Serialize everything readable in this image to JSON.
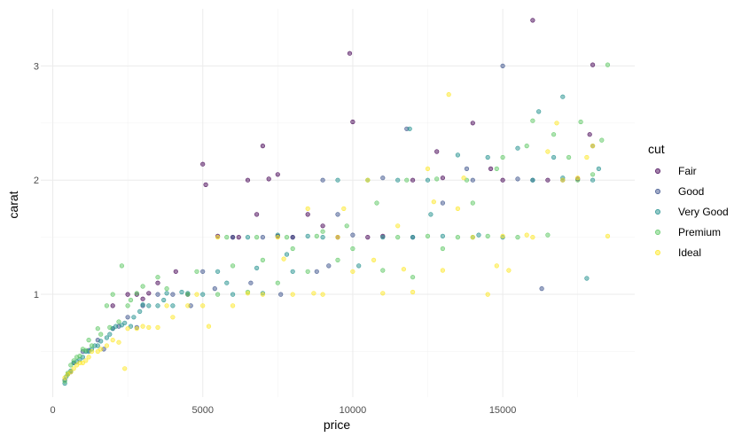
{
  "chart_data": {
    "type": "scatter",
    "title": "",
    "xlabel": "price",
    "ylabel": "carat",
    "xlim": [
      -400,
      19400
    ],
    "ylim": [
      0.1,
      3.5
    ],
    "x_ticks": [
      0,
      5000,
      10000,
      15000
    ],
    "x_tick_labels": [
      "0",
      "5000",
      "10000",
      "15000"
    ],
    "y_ticks": [
      1,
      2,
      3
    ],
    "y_tick_labels": [
      "1",
      "2",
      "3"
    ],
    "grid": true,
    "legend": {
      "title": "cut",
      "position": "right"
    },
    "point_alpha": 0.5,
    "series": [
      {
        "name": "Fair",
        "color": "#440154",
        "points": [
          [
            9900,
            3.11
          ],
          [
            16000,
            3.4
          ],
          [
            18000,
            3.01
          ],
          [
            10000,
            2.51
          ],
          [
            7000,
            2.3
          ],
          [
            5000,
            2.14
          ],
          [
            5100,
            1.96
          ],
          [
            6500,
            2.0
          ],
          [
            7200,
            2.01
          ],
          [
            6800,
            1.7
          ],
          [
            2800,
            1.0
          ],
          [
            3200,
            1.01
          ],
          [
            6000,
            1.5
          ],
          [
            7500,
            1.51
          ],
          [
            8000,
            1.5
          ],
          [
            12000,
            2.0
          ],
          [
            14000,
            2.5
          ],
          [
            15000,
            2.0
          ],
          [
            4100,
            1.2
          ],
          [
            3500,
            1.1
          ],
          [
            2000,
            0.9
          ],
          [
            2500,
            1.0
          ],
          [
            17500,
            2.01
          ],
          [
            13000,
            2.02
          ],
          [
            8500,
            1.7
          ],
          [
            9500,
            1.5
          ],
          [
            11000,
            1.51
          ],
          [
            16500,
            2.0
          ],
          [
            17900,
            2.4
          ],
          [
            7500,
            2.05
          ],
          [
            9000,
            1.6
          ],
          [
            5500,
            1.51
          ],
          [
            3000,
            0.96
          ],
          [
            4500,
            1.0
          ],
          [
            6200,
            1.5
          ],
          [
            12800,
            2.25
          ],
          [
            10500,
            1.5
          ],
          [
            14600,
            2.1
          ]
        ]
      },
      {
        "name": "Good",
        "color": "#3b528b",
        "points": [
          [
            15000,
            3.0
          ],
          [
            16300,
            1.05
          ],
          [
            14000,
            2.0
          ],
          [
            11000,
            2.02
          ],
          [
            9000,
            2.0
          ],
          [
            8000,
            1.5
          ],
          [
            7000,
            1.5
          ],
          [
            6000,
            1.5
          ],
          [
            5000,
            1.2
          ],
          [
            4000,
            1.0
          ],
          [
            3500,
            1.0
          ],
          [
            3000,
            0.9
          ],
          [
            2500,
            0.8
          ],
          [
            2000,
            0.7
          ],
          [
            1500,
            0.6
          ],
          [
            1000,
            0.5
          ],
          [
            700,
            0.4
          ],
          [
            500,
            0.3
          ],
          [
            400,
            0.25
          ],
          [
            600,
            0.32
          ],
          [
            12000,
            1.5
          ],
          [
            13000,
            1.8
          ],
          [
            17000,
            2.0
          ],
          [
            18000,
            2.3
          ],
          [
            16000,
            2.0
          ],
          [
            10000,
            1.52
          ],
          [
            9500,
            1.7
          ],
          [
            8800,
            1.2
          ],
          [
            7600,
            1.0
          ],
          [
            6600,
            1.1
          ],
          [
            5400,
            1.05
          ],
          [
            4600,
            0.9
          ],
          [
            2800,
            0.71
          ],
          [
            2200,
            0.72
          ],
          [
            1700,
            0.52
          ],
          [
            1200,
            0.51
          ],
          [
            15500,
            2.01
          ],
          [
            13800,
            2.1
          ],
          [
            11800,
            2.45
          ],
          [
            9200,
            1.25
          ]
        ]
      },
      {
        "name": "Very Good",
        "color": "#21908d",
        "points": [
          [
            11900,
            2.45
          ],
          [
            17800,
            1.14
          ],
          [
            17000,
            2.73
          ],
          [
            16200,
            2.6
          ],
          [
            15500,
            2.28
          ],
          [
            14500,
            2.2
          ],
          [
            13500,
            2.22
          ],
          [
            12500,
            2.0
          ],
          [
            11500,
            2.0
          ],
          [
            10500,
            2.0
          ],
          [
            9500,
            2.0
          ],
          [
            8500,
            1.51
          ],
          [
            7500,
            1.52
          ],
          [
            6500,
            1.5
          ],
          [
            5500,
            1.2
          ],
          [
            4500,
            1.01
          ],
          [
            4000,
            0.9
          ],
          [
            3500,
            0.9
          ],
          [
            3000,
            0.91
          ],
          [
            2700,
            0.8
          ],
          [
            2400,
            0.75
          ],
          [
            2100,
            0.72
          ],
          [
            1800,
            0.62
          ],
          [
            1500,
            0.55
          ],
          [
            1200,
            0.5
          ],
          [
            1000,
            0.45
          ],
          [
            800,
            0.41
          ],
          [
            600,
            0.33
          ],
          [
            500,
            0.3
          ],
          [
            400,
            0.22
          ],
          [
            450,
            0.28
          ],
          [
            11000,
            1.5
          ],
          [
            12000,
            1.5
          ],
          [
            13000,
            1.51
          ],
          [
            14000,
            1.5
          ],
          [
            15000,
            1.5
          ],
          [
            16000,
            2.0
          ],
          [
            17000,
            2.02
          ],
          [
            18000,
            2.0
          ],
          [
            9000,
            1.5
          ],
          [
            8000,
            1.2
          ],
          [
            7000,
            1.01
          ],
          [
            6000,
            1.0
          ],
          [
            5000,
            1.0
          ],
          [
            3800,
            1.01
          ],
          [
            3200,
            0.9
          ],
          [
            2600,
            0.72
          ],
          [
            2000,
            0.7
          ],
          [
            1600,
            0.59
          ],
          [
            1300,
            0.52
          ],
          [
            900,
            0.43
          ],
          [
            700,
            0.4
          ],
          [
            10200,
            1.25
          ],
          [
            12600,
            1.7
          ],
          [
            14200,
            1.52
          ],
          [
            16700,
            2.2
          ],
          [
            18200,
            2.1
          ],
          [
            7800,
            1.35
          ],
          [
            6800,
            1.23
          ],
          [
            5800,
            1.1
          ],
          [
            4300,
            1.02
          ],
          [
            3700,
            0.95
          ],
          [
            2900,
            0.85
          ],
          [
            2300,
            0.73
          ],
          [
            1900,
            0.65
          ],
          [
            1400,
            0.55
          ],
          [
            1100,
            0.5
          ]
        ]
      },
      {
        "name": "Premium",
        "color": "#5dc863",
        "points": [
          [
            18500,
            3.01
          ],
          [
            17600,
            2.51
          ],
          [
            16700,
            2.4
          ],
          [
            15800,
            2.3
          ],
          [
            14800,
            2.1
          ],
          [
            13800,
            2.0
          ],
          [
            12800,
            2.01
          ],
          [
            11800,
            2.0
          ],
          [
            10800,
            1.8
          ],
          [
            9800,
            1.6
          ],
          [
            8800,
            1.51
          ],
          [
            7800,
            1.5
          ],
          [
            6800,
            1.5
          ],
          [
            5800,
            1.5
          ],
          [
            4800,
            1.2
          ],
          [
            3800,
            1.05
          ],
          [
            2800,
            1.01
          ],
          [
            2600,
            0.95
          ],
          [
            2300,
            1.25
          ],
          [
            2000,
            1.0
          ],
          [
            1800,
            0.9
          ],
          [
            1500,
            0.7
          ],
          [
            1200,
            0.6
          ],
          [
            1000,
            0.52
          ],
          [
            800,
            0.45
          ],
          [
            600,
            0.38
          ],
          [
            500,
            0.31
          ],
          [
            400,
            0.24
          ],
          [
            11500,
            1.5
          ],
          [
            12500,
            1.51
          ],
          [
            13500,
            1.5
          ],
          [
            14500,
            1.51
          ],
          [
            15500,
            1.5
          ],
          [
            16500,
            1.52
          ],
          [
            17500,
            2.0
          ],
          [
            18300,
            2.35
          ],
          [
            9500,
            1.3
          ],
          [
            8500,
            1.2
          ],
          [
            7500,
            1.1
          ],
          [
            6500,
            1.02
          ],
          [
            5500,
            1.0
          ],
          [
            4500,
            1.0
          ],
          [
            3500,
            1.15
          ],
          [
            3000,
            1.07
          ],
          [
            2500,
            0.9
          ],
          [
            2200,
            0.76
          ],
          [
            1900,
            0.71
          ],
          [
            1600,
            0.65
          ],
          [
            1300,
            0.55
          ],
          [
            1100,
            0.51
          ],
          [
            900,
            0.46
          ],
          [
            700,
            0.42
          ],
          [
            10000,
            1.4
          ],
          [
            11000,
            1.21
          ],
          [
            12000,
            1.15
          ],
          [
            13000,
            1.4
          ],
          [
            14000,
            1.8
          ],
          [
            15000,
            2.2
          ],
          [
            16000,
            2.52
          ],
          [
            17200,
            2.2
          ],
          [
            18000,
            2.05
          ],
          [
            6000,
            1.25
          ],
          [
            7000,
            1.3
          ],
          [
            8000,
            1.4
          ],
          [
            9000,
            1.55
          ]
        ]
      },
      {
        "name": "Ideal",
        "color": "#fde725",
        "points": [
          [
            13200,
            2.75
          ],
          [
            14500,
            1.0
          ],
          [
            15200,
            1.21
          ],
          [
            15800,
            1.52
          ],
          [
            16800,
            2.5
          ],
          [
            17500,
            2.02
          ],
          [
            18500,
            1.51
          ],
          [
            13500,
            1.75
          ],
          [
            12500,
            2.1
          ],
          [
            11500,
            1.6
          ],
          [
            10500,
            2.0
          ],
          [
            9500,
            1.5
          ],
          [
            8500,
            1.75
          ],
          [
            7500,
            1.5
          ],
          [
            6500,
            1.01
          ],
          [
            5500,
            1.5
          ],
          [
            4500,
            0.9
          ],
          [
            3500,
            0.71
          ],
          [
            3000,
            0.72
          ],
          [
            2500,
            0.7
          ],
          [
            2000,
            0.6
          ],
          [
            1800,
            0.55
          ],
          [
            1500,
            0.5
          ],
          [
            1200,
            0.45
          ],
          [
            1000,
            0.4
          ],
          [
            800,
            0.38
          ],
          [
            600,
            0.32
          ],
          [
            500,
            0.3
          ],
          [
            400,
            0.27
          ],
          [
            11000,
            1.01
          ],
          [
            12000,
            1.02
          ],
          [
            13000,
            1.21
          ],
          [
            14000,
            1.5
          ],
          [
            15000,
            1.51
          ],
          [
            16000,
            1.5
          ],
          [
            17000,
            2.0
          ],
          [
            18000,
            2.3
          ],
          [
            10000,
            1.2
          ],
          [
            9000,
            1.0
          ],
          [
            8000,
            1.0
          ],
          [
            7000,
            1.0
          ],
          [
            6000,
            0.9
          ],
          [
            5000,
            0.9
          ],
          [
            4000,
            0.8
          ],
          [
            3200,
            0.71
          ],
          [
            2800,
            0.7
          ],
          [
            2200,
            0.58
          ],
          [
            1600,
            0.52
          ],
          [
            1300,
            0.5
          ],
          [
            1100,
            0.42
          ],
          [
            900,
            0.4
          ],
          [
            700,
            0.35
          ],
          [
            4800,
            1.0
          ],
          [
            5200,
            0.72
          ],
          [
            3800,
            0.9
          ],
          [
            2400,
            0.35
          ],
          [
            17800,
            2.2
          ],
          [
            16500,
            2.25
          ],
          [
            14800,
            1.25
          ],
          [
            13700,
            2.02
          ],
          [
            12700,
            1.81
          ],
          [
            11700,
            1.22
          ],
          [
            10700,
            1.3
          ],
          [
            9700,
            1.75
          ],
          [
            8700,
            1.01
          ],
          [
            7700,
            1.31
          ]
        ]
      }
    ]
  }
}
